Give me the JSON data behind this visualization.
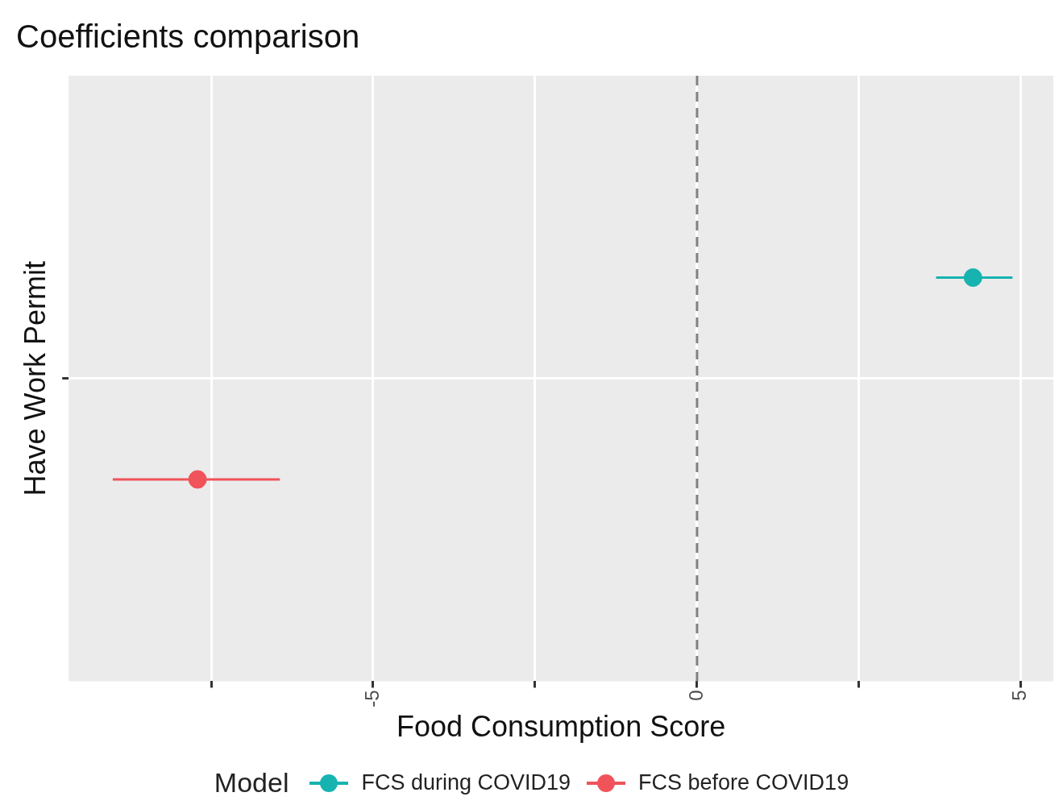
{
  "chart_data": {
    "type": "scatter",
    "orientation": "horizontal",
    "title": "Coefficients comparison",
    "xlabel": "Food Consumption Score",
    "ylabel": "Have Work Permit",
    "legend_title": "Model",
    "categories": [
      null
    ],
    "series": [
      {
        "name": "FCS during COVID19",
        "color": "#17b3b0",
        "values": [
          4.26
        ],
        "errors": [
          [
            3.69,
            4.87
          ]
        ]
      },
      {
        "name": "FCS before COVID19",
        "color": "#f0535a",
        "values": [
          -7.71
        ],
        "errors": [
          [
            -9.02,
            -6.44
          ]
        ]
      }
    ],
    "xlim": [
      -9.7,
      5.5
    ],
    "xticks": [
      {
        "value": -7.5,
        "label": null
      },
      -5,
      {
        "value": -2.5,
        "label": null
      },
      0,
      {
        "value": 2.5,
        "label": null
      },
      5
    ],
    "ref_lines": [
      {
        "axis": "x",
        "value": 0,
        "color": "#808080",
        "line_style": "dashed"
      }
    ],
    "grid": true,
    "legend": "bottom",
    "marker": "circle"
  }
}
